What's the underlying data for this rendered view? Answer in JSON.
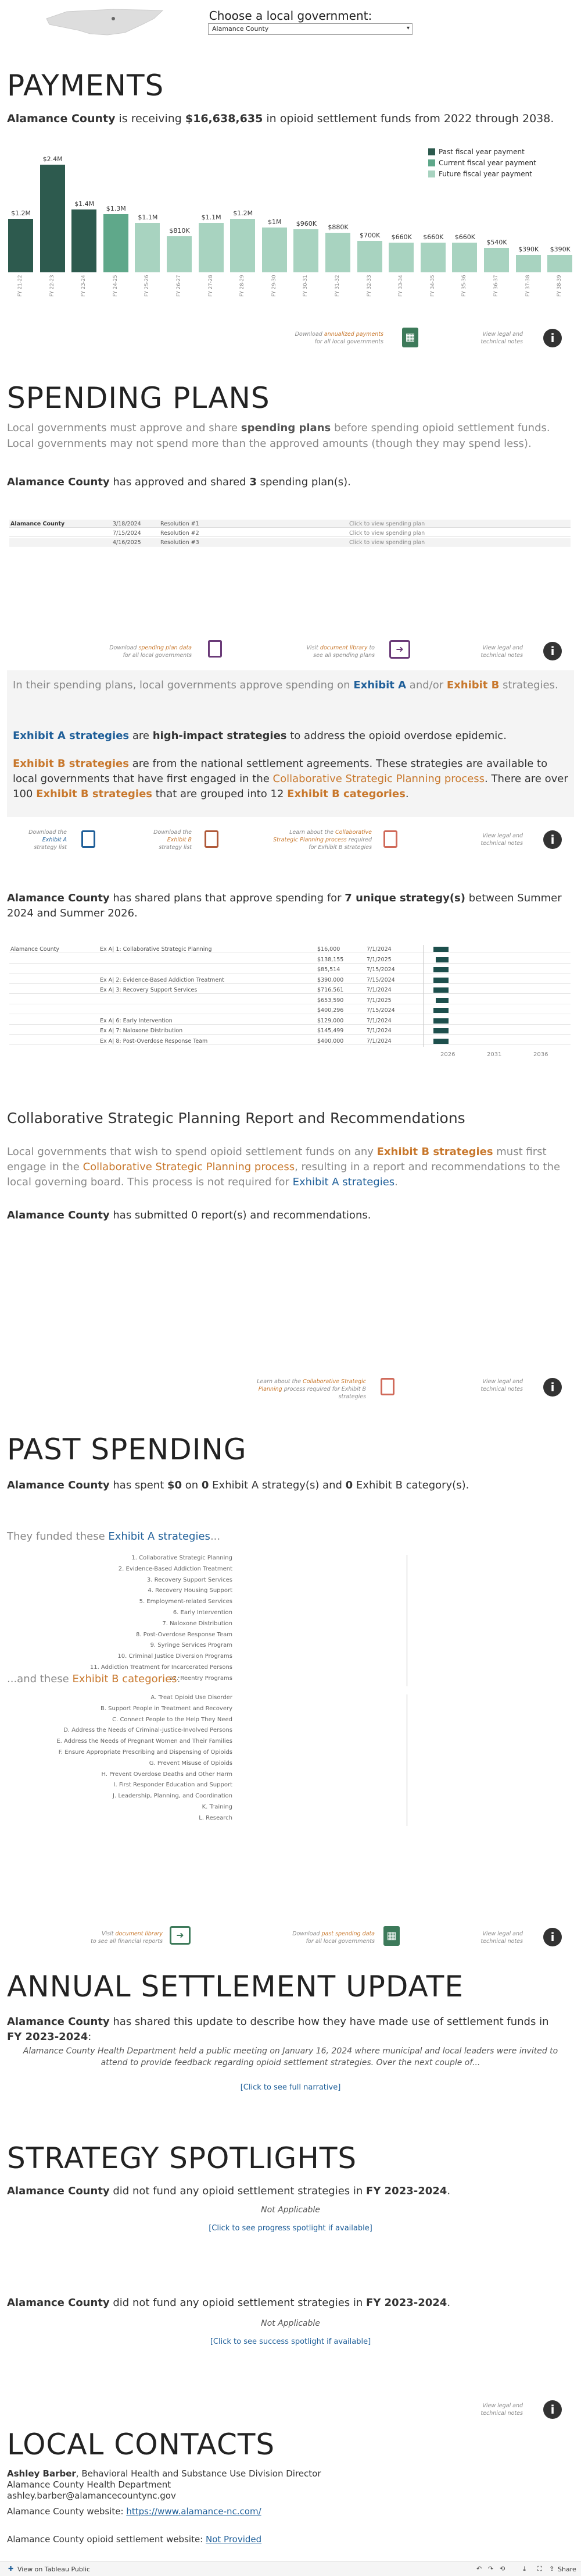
{
  "header": {
    "choose_label": "Choose a local government:",
    "selected_county": "Alamance County"
  },
  "payments": {
    "title": "PAYMENTS",
    "county": "Alamance County",
    "intro_mid": " is receiving ",
    "amount": "$16,638,635",
    "intro_end": " in opioid settlement funds from 2022 through 2038.",
    "legend": [
      "Past fiscal year payment",
      "Current fiscal year payment",
      "Future fiscal year payment"
    ],
    "colors": {
      "past": "#2d5a4e",
      "current": "#5fa88a",
      "future": "#a8d3c0"
    },
    "download_note": [
      "Download ",
      "annualized payments",
      "for all local governments"
    ],
    "legal_note": [
      "View legal and",
      "technical notes"
    ]
  },
  "chart_data": {
    "type": "bar",
    "categories": [
      "FY 21-22",
      "FY 22-23",
      "FY 23-24",
      "FY 24-25",
      "FY 25-26",
      "FY 26-27",
      "FY 27-28",
      "FY 28-29",
      "FY 29-30",
      "FY 30-31",
      "FY 31-32",
      "FY 32-33",
      "FY 33-34",
      "FY 34-35",
      "FY 35-36",
      "FY 36-37",
      "FY 37-38",
      "FY 38-39"
    ],
    "values": [
      1.2,
      2.4,
      1.4,
      1.3,
      1.1,
      0.81,
      1.1,
      1.2,
      1.0,
      0.96,
      0.88,
      0.7,
      0.66,
      0.66,
      0.66,
      0.54,
      0.39,
      0.39
    ],
    "labels": [
      "$1.2M",
      "$2.4M",
      "$1.4M",
      "$1.3M",
      "$1.1M",
      "$810K",
      "$1.1M",
      "$1.2M",
      "$1M",
      "$960K",
      "$880K",
      "$700K",
      "$660K",
      "$660K",
      "$660K",
      "$540K",
      "$390K",
      "$390K"
    ],
    "status": [
      "past",
      "past",
      "past",
      "current",
      "future",
      "future",
      "future",
      "future",
      "future",
      "future",
      "future",
      "future",
      "future",
      "future",
      "future",
      "future",
      "future",
      "future"
    ],
    "ylim": [
      0,
      2.6
    ]
  },
  "spending_plans": {
    "title": "SPENDING PLANS",
    "desc1a": "Local governments must approve and share ",
    "desc1b": "spending plans",
    "desc1c": " before spending opioid settlement funds.",
    "desc2": "Local governments may not spend more than the approved amounts (though they may spend less).",
    "count_line_a": "Alamance County",
    "count_line_b": " has approved and shared ",
    "count": "3",
    "count_line_c": " spending plan(s).",
    "rows": [
      {
        "county": "Alamance County",
        "date": "3/18/2024",
        "res": "Resolution #1",
        "link": "Click to view spending plan"
      },
      {
        "county": "",
        "date": "7/15/2024",
        "res": "Resolution #2",
        "link": "Click to view spending plan"
      },
      {
        "county": "",
        "date": "4/16/2025",
        "res": "Resolution #3",
        "link": "Click to view spending plan"
      }
    ],
    "notes": {
      "download": [
        "Download ",
        "spending plan data",
        "for all local governments"
      ],
      "library": [
        "Visit ",
        "document library",
        " to",
        "see all spending plans"
      ],
      "legal": [
        "View legal and",
        "technical notes"
      ]
    }
  },
  "exhibits": {
    "p1a": "In their spending plans, local governments approve spending on ",
    "p1b": "Exhibit A",
    "p1c": " and/or ",
    "p1d": "Exhibit B",
    "p1e": " strategies.",
    "p2a": "Exhibit A strategies",
    "p2b": " are ",
    "p2c": "high-impact strategies",
    "p2d": " to address the opioid overdose epidemic.",
    "p3a": "Exhibit B strategies",
    "p3b": " are from the national settlement agreements. These strategies are available to local governments that have first engaged in the ",
    "p3c": "Collaborative Strategic Planning process",
    "p3d": ". There are over 100 ",
    "p3e": "Exhibit B strategies",
    "p3f": " that are grouped into 12 ",
    "p3g": "Exhibit B categories",
    "p3h": ".",
    "notes": {
      "a": [
        "Download the",
        "Exhibit A",
        "strategy list"
      ],
      "b": [
        "Download the",
        "Exhibit B",
        "strategy list"
      ],
      "csp": [
        "Learn about the ",
        "Collaborative",
        "Strategic Planning process",
        " required",
        "for Exhibit B strategies"
      ],
      "legal": [
        "View legal and",
        "technical notes"
      ]
    }
  },
  "unique": {
    "a": "Alamance County",
    "b": " has shared plans that approve spending for ",
    "c": "7 unique strategy(s)",
    "d": " between Summer 2024 and Summer 2026.",
    "rows": [
      {
        "county": "Alamance County",
        "strategy": "Ex A| 1: Collaborative Strategic Planning",
        "amount": "$16,000",
        "date": "7/1/2024"
      },
      {
        "county": "",
        "strategy": "",
        "amount": "$138,155",
        "date": "7/1/2025"
      },
      {
        "county": "",
        "strategy": "",
        "amount": "$85,514",
        "date": "7/15/2024"
      },
      {
        "county": "",
        "strategy": "Ex A| 2: Evidence-Based Addiction Treatment",
        "amount": "$390,000",
        "date": "7/15/2024"
      },
      {
        "county": "",
        "strategy": "Ex A| 3: Recovery Support Services",
        "amount": "$716,561",
        "date": "7/1/2024"
      },
      {
        "county": "",
        "strategy": "",
        "amount": "$653,590",
        "date": "7/1/2025"
      },
      {
        "county": "",
        "strategy": "",
        "amount": "$400,296",
        "date": "7/15/2024"
      },
      {
        "county": "",
        "strategy": "Ex A| 6: Early Intervention",
        "amount": "$129,000",
        "date": "7/1/2024"
      },
      {
        "county": "",
        "strategy": "Ex A| 7: Naloxone Distribution",
        "amount": "$145,499",
        "date": "7/1/2024"
      },
      {
        "county": "",
        "strategy": "Ex A| 8: Post-Overdose Response Team",
        "amount": "$400,000",
        "date": "7/1/2024"
      }
    ],
    "axis": [
      "2026",
      "2031",
      "2036"
    ]
  },
  "csp": {
    "title": "Collaborative Strategic Planning Report and Recommendations",
    "p1a": "Local governments that wish to spend opioid settlement funds on any ",
    "p1b": "Exhibit B strategies",
    "p1c": " must first engage in the ",
    "p1d": "Collaborative Strategic Planning process",
    "p1e": ", resulting in a report and recommendations to the local governing board. This process is not required for ",
    "p1f": "Exhibit A strategies",
    "p1g": ".",
    "count_a": "Alamance County",
    "count_b": " has submitted 0 report(s) and recommendations.",
    "notes": {
      "learn": [
        "Learn about the ",
        "Collaborative Strategic",
        "Planning",
        " process required for Exhibit B strategies"
      ],
      "legal": [
        "View legal and",
        "technical notes"
      ]
    }
  },
  "past": {
    "title": "PAST SPENDING",
    "a": "Alamance County",
    "b": " has spent ",
    "c": "$0",
    "d": " on ",
    "e": "0",
    "f": " Exhibit A strategy(s) and ",
    "g": "0",
    "h": " Exhibit B category(s).",
    "funded_a": "They funded these ",
    "funded_b": "Exhibit A strategies",
    "funded_c": "...",
    "exA": [
      "1. Collaborative Strategic Planning",
      "2. Evidence-Based Addiction Treatment",
      "3. Recovery Support Services",
      "4. Recovery Housing Support",
      "5. Employment-related Services",
      "6. Early Intervention",
      "7. Naloxone Distribution",
      "8. Post-Overdose Response Team",
      "9. Syringe Services Program",
      "10. Criminal Justice Diversion Programs",
      "11. Addiction Treatment for Incarcerated Persons",
      "12. Reentry Programs"
    ],
    "these_a": "...and these ",
    "these_b": "Exhibit B categories",
    "these_c": ":",
    "exB": [
      "A. Treat Opioid Use Disorder",
      "B. Support People in Treatment and Recovery",
      "C. Connect People to the Help They Need",
      "D. Address the Needs of Criminal-Justice-Involved Persons",
      "E. Address the Needs of Pregnant Women and Their Families",
      "F. Ensure Appropriate Prescribing and Dispensing of Opioids",
      "G. Prevent Misuse of Opioids",
      "H. Prevent Overdose Deaths and Other Harm",
      "I. First Responder Education and Support",
      "J. Leadership, Planning, and Coordination",
      "K. Training",
      "L. Research"
    ],
    "notes": {
      "library": [
        "Visit ",
        "document library",
        "to see all financial reports"
      ],
      "download": [
        "Download ",
        "past spending data",
        "for all local governments"
      ],
      "legal": [
        "View legal and",
        "technical notes"
      ]
    }
  },
  "annual": {
    "title": "ANNUAL SETTLEMENT UPDATE",
    "a": "Alamance County",
    "b": " has shared this update to describe how they have made use of settlement funds in ",
    "c": "FY 2023-2024",
    "d": ":",
    "quote": "Alamance County Health Department held a public meeting on January 16, 2024 where municipal and local leaders were invited to attend to provide feedback regarding opioid settlement strategies. Over the next couple of...",
    "link": "[Click to see full narrative]"
  },
  "spotlights": {
    "title": "STRATEGY SPOTLIGHTS",
    "s1a": "Alamance County",
    "s1b": " did not fund any opioid settlement strategies in ",
    "s1c": "FY 2023-2024",
    "s1d": ".",
    "na": "Not Applicable",
    "link1": "[Click to see progress spotlight if available]",
    "link2": "[Click to see success spotlight if available]",
    "legal": [
      "View legal and",
      "technical notes"
    ]
  },
  "contacts": {
    "title": "LOCAL CONTACTS",
    "name": "Ashley Barber",
    "role": ", Behavioral Health and Substance Use Division Director",
    "org": "Alamance County Health Department",
    "email": "ashley.barber@alamancecountync.gov",
    "web_label": "Alamance County website: ",
    "web": "https://www.alamance-nc.com/",
    "os_label": "Alamance County opioid settlement website: ",
    "os": "Not Provided"
  },
  "footer": {
    "tableau": "View on Tableau Public",
    "share": "Share"
  }
}
